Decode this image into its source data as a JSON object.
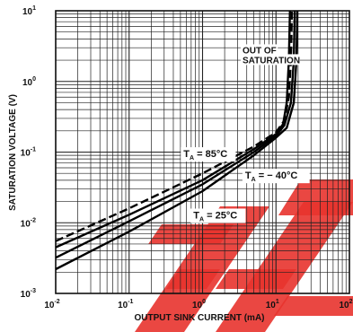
{
  "chart_data": {
    "type": "line",
    "title": "",
    "xlabel": "OUTPUT SINK CURRENT (mA)",
    "ylabel": "SATURATION VOLTAGE (V)",
    "x_scale": "log",
    "y_scale": "log",
    "xlim": [
      0.01,
      100
    ],
    "ylim": [
      0.001,
      10
    ],
    "grid": true,
    "x_ticks": [
      {
        "base": "10",
        "exp": "-2"
      },
      {
        "base": "10",
        "exp": "-1"
      },
      {
        "base": "10",
        "exp": "0"
      },
      {
        "base": "10",
        "exp": "1"
      },
      {
        "base": "10",
        "exp": "2"
      }
    ],
    "y_ticks": [
      {
        "base": "10",
        "exp": "1"
      },
      {
        "base": "10",
        "exp": "0"
      },
      {
        "base": "10",
        "exp": "-1"
      },
      {
        "base": "10",
        "exp": "-2"
      },
      {
        "base": "10",
        "exp": "-3"
      }
    ],
    "series": [
      {
        "style": "dashed",
        "points": [
          [
            0.01,
            0.0055
          ],
          [
            0.1,
            0.016
          ],
          [
            1,
            0.05
          ],
          [
            5,
            0.12
          ],
          [
            10,
            0.19
          ],
          [
            13,
            0.28
          ],
          [
            15,
            0.6
          ],
          [
            16,
            2
          ],
          [
            16.5,
            10
          ]
        ]
      },
      {
        "style": "solid",
        "points": [
          [
            0.01,
            0.0045
          ],
          [
            0.1,
            0.013
          ],
          [
            1,
            0.04
          ],
          [
            5,
            0.11
          ],
          [
            10,
            0.18
          ],
          [
            12.5,
            0.25
          ],
          [
            14,
            0.5
          ],
          [
            15,
            2
          ],
          [
            15.5,
            10
          ]
        ]
      },
      {
        "style": "solid",
        "points": [
          [
            0.01,
            0.0032
          ],
          [
            0.1,
            0.0105
          ],
          [
            1,
            0.035
          ],
          [
            5,
            0.1
          ],
          [
            10,
            0.17
          ],
          [
            13,
            0.24
          ],
          [
            16,
            0.5
          ],
          [
            17.5,
            2
          ],
          [
            18,
            10
          ]
        ]
      },
      {
        "style": "solid",
        "points": [
          [
            0.01,
            0.0022
          ],
          [
            0.1,
            0.0075
          ],
          [
            1,
            0.028
          ],
          [
            5,
            0.09
          ],
          [
            10,
            0.16
          ],
          [
            14,
            0.22
          ],
          [
            17.5,
            0.5
          ],
          [
            19,
            2
          ],
          [
            19.5,
            10
          ]
        ]
      }
    ],
    "annotations": [
      {
        "lines": [
          "OUT OF",
          "SATURATION"
        ],
        "at": [
          3.5,
          2.5
        ]
      },
      {
        "main": "T",
        "sub": "A",
        "rest": " = 85°C",
        "at": [
          0.55,
          0.085
        ]
      },
      {
        "main": "T",
        "sub": "A",
        "rest": " = − 40°C",
        "at": [
          3.8,
          0.042
        ]
      },
      {
        "main": "T",
        "sub": "A",
        "rest": " = 25°C",
        "at": [
          0.75,
          0.0115
        ]
      }
    ]
  },
  "watermark": {
    "color": "#e8332e"
  }
}
